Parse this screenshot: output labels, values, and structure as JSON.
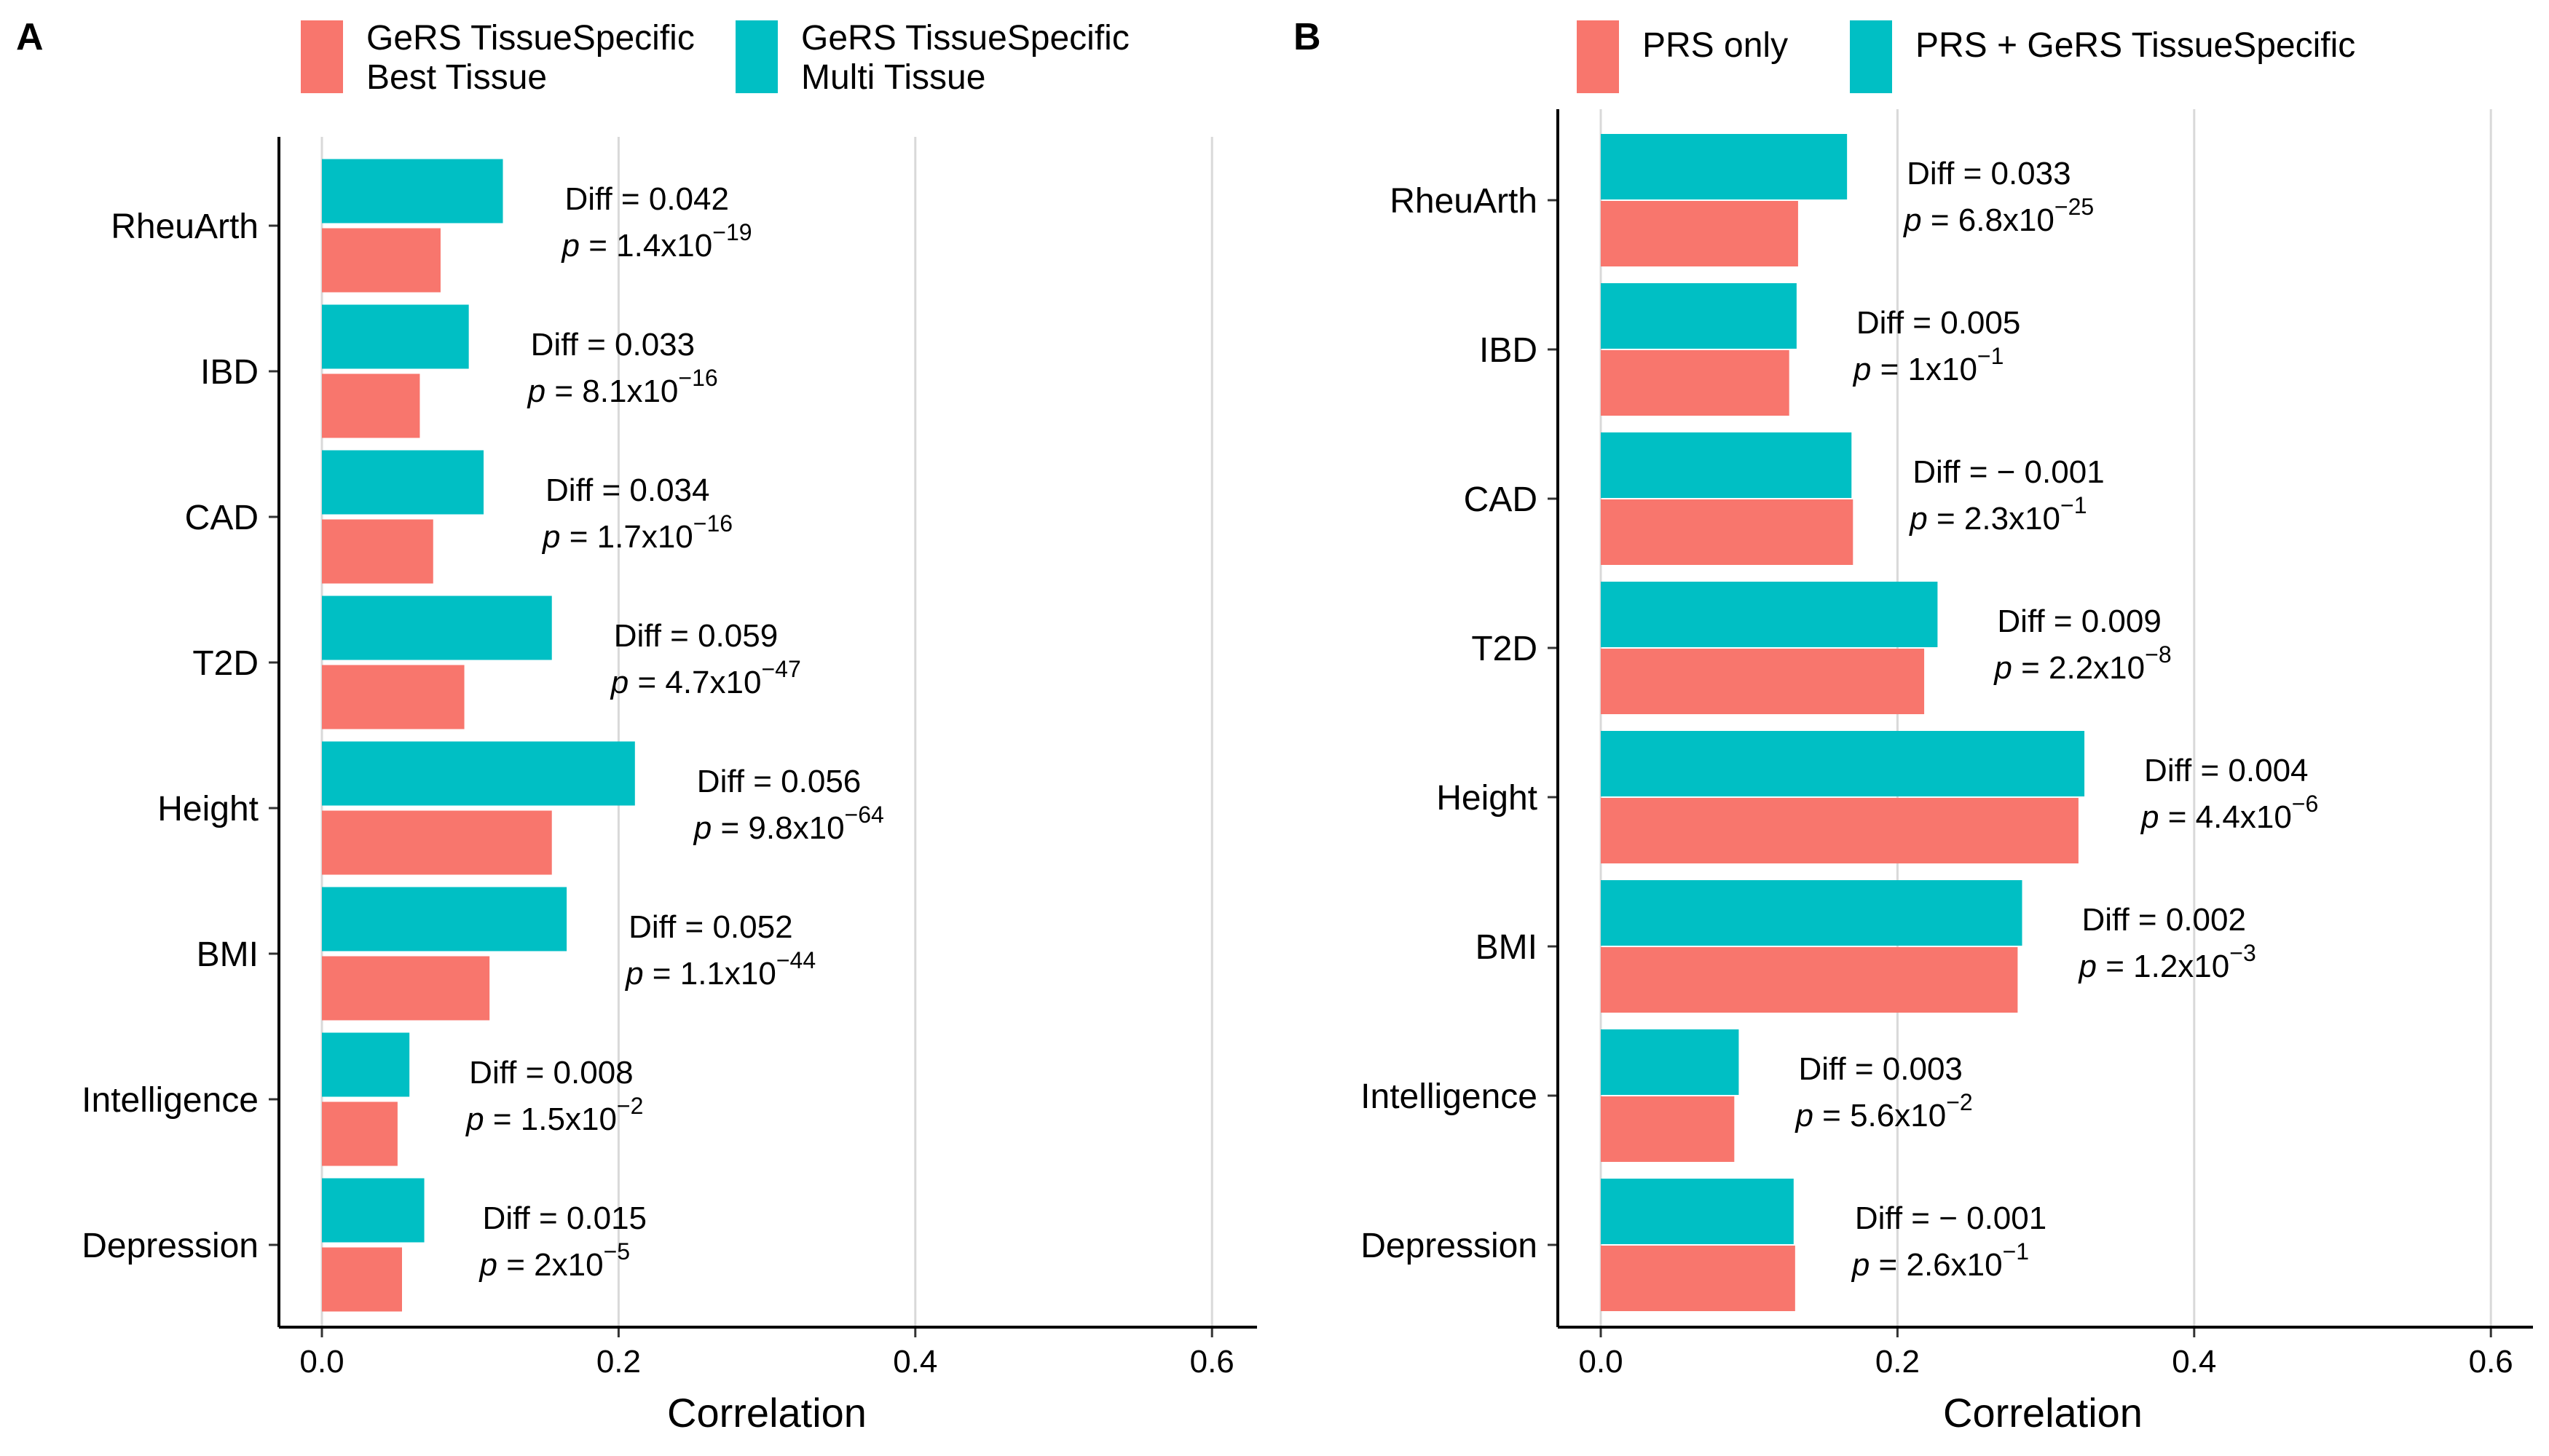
{
  "chart_data": [
    {
      "type": "bar",
      "orientation": "horizontal",
      "panel": "A",
      "xlabel": "Correlation",
      "ylabel": "",
      "xlim": [
        0,
        0.6
      ],
      "xticks": [
        "0.0",
        "0.2",
        "0.4",
        "0.6"
      ],
      "grid": true,
      "legend_position": "top",
      "categories": [
        "RheuArth",
        "IBD",
        "CAD",
        "T2D",
        "Height",
        "BMI",
        "Intelligence",
        "Depression"
      ],
      "series": [
        {
          "name_lines": [
            "GeRS TissueSpecific",
            "Best Tissue"
          ],
          "color": "#F8766D",
          "values": [
            0.08,
            0.066,
            0.075,
            0.096,
            0.155,
            0.113,
            0.051,
            0.054
          ]
        },
        {
          "name_lines": [
            "GeRS TissueSpecific",
            "Multi Tissue"
          ],
          "color": "#00BFC4",
          "values": [
            0.122,
            0.099,
            0.109,
            0.155,
            0.211,
            0.165,
            0.059,
            0.069
          ]
        }
      ],
      "annotations": [
        {
          "diff": "Diff = 0.042",
          "p_prefix": "p",
          "p_eq": " = 1.4x10",
          "p_exp": "−19"
        },
        {
          "diff": "Diff = 0.033",
          "p_prefix": "p",
          "p_eq": " = 8.1x10",
          "p_exp": "−16"
        },
        {
          "diff": "Diff = 0.034",
          "p_prefix": "p",
          "p_eq": " = 1.7x10",
          "p_exp": "−16"
        },
        {
          "diff": "Diff = 0.059",
          "p_prefix": "p",
          "p_eq": " = 4.7x10",
          "p_exp": "−47"
        },
        {
          "diff": "Diff = 0.056",
          "p_prefix": "p",
          "p_eq": " = 9.8x10",
          "p_exp": "−64"
        },
        {
          "diff": "Diff = 0.052",
          "p_prefix": "p",
          "p_eq": " = 1.1x10",
          "p_exp": "−44"
        },
        {
          "diff": "Diff = 0.008",
          "p_prefix": "p",
          "p_eq": " = 1.5x10",
          "p_exp": "−2"
        },
        {
          "diff": "Diff = 0.015",
          "p_prefix": "p",
          "p_eq": " = 2x10",
          "p_exp": "−5"
        }
      ]
    },
    {
      "type": "bar",
      "orientation": "horizontal",
      "panel": "B",
      "xlabel": "Correlation",
      "ylabel": "",
      "xlim": [
        0,
        0.6
      ],
      "xticks": [
        "0.0",
        "0.2",
        "0.4",
        "0.6"
      ],
      "grid": true,
      "legend_position": "top",
      "categories": [
        "RheuArth",
        "IBD",
        "CAD",
        "T2D",
        "Height",
        "BMI",
        "Intelligence",
        "Depression"
      ],
      "series": [
        {
          "name_lines": [
            "PRS only"
          ],
          "color": "#F8766D",
          "values": [
            0.133,
            0.127,
            0.17,
            0.218,
            0.322,
            0.281,
            0.09,
            0.131
          ]
        },
        {
          "name_lines": [
            "PRS + GeRS TissueSpecific"
          ],
          "color": "#00BFC4",
          "values": [
            0.166,
            0.132,
            0.169,
            0.227,
            0.326,
            0.284,
            0.093,
            0.13
          ]
        }
      ],
      "annotations": [
        {
          "diff": "Diff = 0.033",
          "p_prefix": "p",
          "p_eq": " = 6.8x10",
          "p_exp": "−25"
        },
        {
          "diff": "Diff = 0.005",
          "p_prefix": "p",
          "p_eq": " = 1x10",
          "p_exp": "−1"
        },
        {
          "diff": "Diff = − 0.001",
          "p_prefix": "p",
          "p_eq": " = 2.3x10",
          "p_exp": "−1"
        },
        {
          "diff": "Diff = 0.009",
          "p_prefix": "p",
          "p_eq": " = 2.2x10",
          "p_exp": "−8"
        },
        {
          "diff": "Diff = 0.004",
          "p_prefix": "p",
          "p_eq": " = 4.4x10",
          "p_exp": "−6"
        },
        {
          "diff": "Diff = 0.002",
          "p_prefix": "p",
          "p_eq": " = 1.2x10",
          "p_exp": "−3"
        },
        {
          "diff": "Diff = 0.003",
          "p_prefix": "p",
          "p_eq": " = 5.6x10",
          "p_exp": "−2"
        },
        {
          "diff": "Diff = − 0.001",
          "p_prefix": "p",
          "p_eq": " = 2.6x10",
          "p_exp": "−1"
        }
      ]
    }
  ]
}
